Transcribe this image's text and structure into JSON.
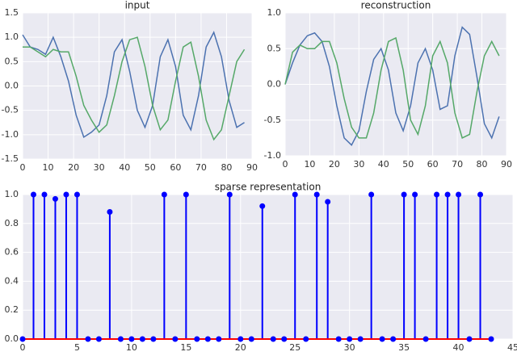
{
  "chart_data": [
    {
      "type": "line",
      "title": "input",
      "x": [
        0,
        3,
        6,
        9,
        12,
        15,
        18,
        21,
        24,
        27,
        30,
        33,
        36,
        39,
        42,
        45,
        48,
        51,
        54,
        57,
        60,
        63,
        66,
        69,
        72,
        75,
        78,
        81,
        84,
        87
      ],
      "series": [
        {
          "color": "#4c72b0",
          "values": [
            1.05,
            0.8,
            0.75,
            0.65,
            1.0,
            0.6,
            0.1,
            -0.6,
            -1.05,
            -0.95,
            -0.8,
            -0.2,
            0.7,
            0.95,
            0.3,
            -0.5,
            -0.85,
            -0.4,
            0.6,
            0.95,
            0.4,
            -0.6,
            -0.9,
            -0.2,
            0.8,
            1.1,
            0.6,
            -0.3,
            -0.85,
            -0.75
          ]
        },
        {
          "color": "#55a868",
          "values": [
            0.8,
            0.8,
            0.7,
            0.6,
            0.75,
            0.7,
            0.7,
            0.2,
            -0.4,
            -0.7,
            -0.95,
            -0.8,
            -0.2,
            0.5,
            0.95,
            1.0,
            0.4,
            -0.4,
            -0.9,
            -0.7,
            0.1,
            0.8,
            0.9,
            0.2,
            -0.7,
            -1.1,
            -0.9,
            -0.2,
            0.5,
            0.75
          ]
        }
      ],
      "xlim": [
        0,
        90
      ],
      "xticks": [
        0,
        10,
        20,
        30,
        40,
        50,
        60,
        70,
        80,
        90
      ],
      "ylim": [
        -1.5,
        1.5
      ],
      "yticks": [
        -1.5,
        {
          "value": -1.0,
          "label": "-1.0"
        },
        -0.5,
        {
          "value": 0,
          "label": "0.0"
        },
        0.5,
        {
          "value": 1.0,
          "label": "1.0"
        },
        1.5
      ],
      "grid": true
    },
    {
      "type": "line",
      "title": "reconstruction",
      "x": [
        0,
        3,
        6,
        9,
        12,
        15,
        18,
        21,
        24,
        27,
        30,
        33,
        36,
        39,
        42,
        45,
        48,
        51,
        54,
        57,
        60,
        63,
        66,
        69,
        72,
        75,
        78,
        81,
        84,
        87
      ],
      "series": [
        {
          "color": "#4c72b0",
          "values": [
            0,
            0.3,
            0.55,
            0.68,
            0.72,
            0.6,
            0.25,
            -0.3,
            -0.75,
            -0.85,
            -0.65,
            -0.1,
            0.35,
            0.5,
            0.2,
            -0.4,
            -0.65,
            -0.3,
            0.3,
            0.5,
            0.2,
            -0.35,
            -0.3,
            0.4,
            0.8,
            0.7,
            0.1,
            -0.55,
            -0.75,
            -0.45
          ]
        },
        {
          "color": "#55a868",
          "values": [
            0,
            0.45,
            0.55,
            0.5,
            0.5,
            0.6,
            0.6,
            0.3,
            -0.2,
            -0.6,
            -0.75,
            -0.75,
            -0.4,
            0.2,
            0.6,
            0.65,
            0.2,
            -0.5,
            -0.7,
            -0.3,
            0.4,
            0.6,
            0.3,
            -0.4,
            -0.75,
            -0.7,
            -0.1,
            0.4,
            0.6,
            0.4
          ]
        }
      ],
      "xlim": [
        0,
        90
      ],
      "xticks": [
        0,
        10,
        20,
        30,
        40,
        50,
        60,
        70,
        80,
        90
      ],
      "ylim": [
        -1.0,
        1.0
      ],
      "yticks": [
        {
          "value": -1.0,
          "label": "-1.0"
        },
        -0.5,
        {
          "value": 0,
          "label": "0.0"
        },
        0.5,
        {
          "value": 1.0,
          "label": "1.0"
        }
      ],
      "grid": true
    },
    {
      "type": "stem",
      "title": "sparse representation",
      "x": [
        0,
        1,
        2,
        3,
        4,
        5,
        6,
        7,
        8,
        9,
        10,
        11,
        12,
        13,
        14,
        15,
        16,
        17,
        18,
        19,
        20,
        21,
        22,
        23,
        24,
        25,
        26,
        27,
        28,
        29,
        30,
        31,
        32,
        33,
        34,
        35,
        36,
        37,
        38,
        39,
        40,
        41,
        42,
        43
      ],
      "values": [
        0,
        1,
        1,
        0.97,
        1,
        1,
        0,
        0,
        0.88,
        0,
        0,
        0,
        0,
        1,
        0,
        1,
        0,
        0,
        0,
        1,
        0,
        0,
        0.92,
        0,
        0,
        1,
        0,
        1,
        0.95,
        0,
        0,
        0,
        1,
        0,
        0,
        1,
        1,
        0,
        1,
        1,
        1,
        0,
        1,
        0
      ],
      "color": "#0000ff",
      "baseline_color": "#ff0000",
      "xlim": [
        0,
        45
      ],
      "xticks": [
        0,
        5,
        10,
        15,
        20,
        25,
        30,
        35,
        40,
        45
      ],
      "ylim": [
        0,
        1.0
      ],
      "yticks": [
        {
          "value": 0,
          "label": "0.0"
        },
        {
          "value": 0.2,
          "label": "0.2"
        },
        {
          "value": 0.4,
          "label": "0.4"
        },
        {
          "value": 0.6,
          "label": "0.6"
        },
        {
          "value": 0.8,
          "label": "0.8"
        },
        {
          "value": 1.0,
          "label": "1.0"
        }
      ],
      "grid": true
    }
  ]
}
